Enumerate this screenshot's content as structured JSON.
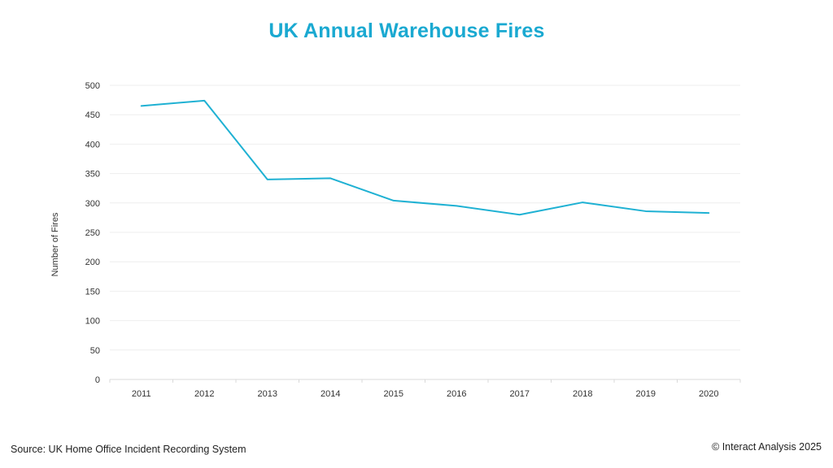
{
  "chart_data": {
    "type": "line",
    "title": "UK Annual Warehouse Fires",
    "xlabel": "",
    "ylabel": "Number of Fires",
    "ylim": [
      0,
      500
    ],
    "yticks": [
      0,
      50,
      100,
      150,
      200,
      250,
      300,
      350,
      400,
      450,
      500
    ],
    "grid": true,
    "categories": [
      "2011",
      "2012",
      "2013",
      "2014",
      "2015",
      "2016",
      "2017",
      "2018",
      "2019",
      "2020"
    ],
    "series": [
      {
        "values": [
          465,
          474,
          340,
          342,
          304,
          295,
          280,
          301,
          286,
          283
        ],
        "color": "#1fb1d3"
      }
    ]
  },
  "footer": {
    "source": "Source: UK Home Office Incident Recording System",
    "copyright": "© Interact Analysis 2025"
  },
  "colors": {
    "title": "#1aa9d1",
    "line": "#1fb1d3",
    "grid": "#eeeeee"
  }
}
